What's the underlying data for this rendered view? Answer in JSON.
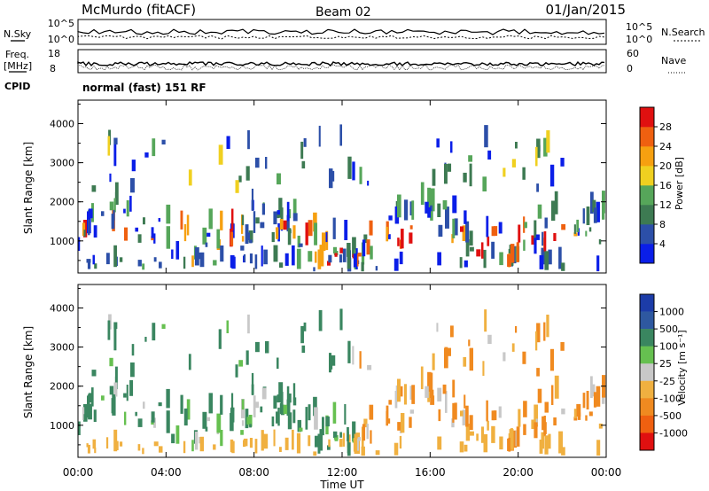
{
  "header": {
    "station": "McMurdo (fitACF)",
    "beam": "Beam 02",
    "date": "01/Jan/2015"
  },
  "top_panel": {
    "left_label": "N.Sky",
    "right_label": "N.Search",
    "left_ticks": [
      "10^5",
      "10^0"
    ],
    "right_ticks": [
      "10^5",
      "10^0"
    ]
  },
  "freq_panel": {
    "left_label_1": "Freq.",
    "left_label_2": "[MHz]",
    "right_label": "Nave",
    "left_ticks": [
      "18",
      "8"
    ],
    "right_ticks": [
      "60",
      "0"
    ]
  },
  "cpid": {
    "label": "CPID",
    "mode": "normal (fast) 151 RF"
  },
  "chart_data": [
    {
      "type": "heatmap",
      "name": "power",
      "ylabel": "Slant Range [km]",
      "ylim": [
        180,
        4600
      ],
      "yticks": [
        "1000",
        "2000",
        "3000",
        "4000"
      ],
      "colorbar_label": "Power [dB]",
      "colorbar_ticks": [
        "4",
        "8",
        "12",
        "16",
        "20",
        "24",
        "28"
      ],
      "colors": [
        "#0a1ee8",
        "#2c4fa8",
        "#3d7a52",
        "#56a65a",
        "#f0d020",
        "#f6a010",
        "#ef6010",
        "#e01010"
      ]
    },
    {
      "type": "heatmap",
      "name": "velocity",
      "ylabel": "Slant Range [km]",
      "ylim": [
        180,
        4600
      ],
      "yticks": [
        "1000",
        "2000",
        "3000",
        "4000"
      ],
      "colorbar_label": "Velocity [m s⁻¹]",
      "colorbar_ticks": [
        "1000",
        "500",
        "100",
        "25",
        "-25",
        "-100",
        "-500",
        "-1000"
      ],
      "colors": [
        "#1c3ca8",
        "#2e58a0",
        "#3a8660",
        "#66c050",
        "#c8c8c8",
        "#f0b040",
        "#f08a20",
        "#f06010",
        "#e01010"
      ]
    }
  ],
  "xaxis": {
    "label": "Time UT",
    "ticks": [
      "00:00",
      "04:00",
      "08:00",
      "12:00",
      "16:00",
      "20:00",
      "00:00"
    ]
  }
}
